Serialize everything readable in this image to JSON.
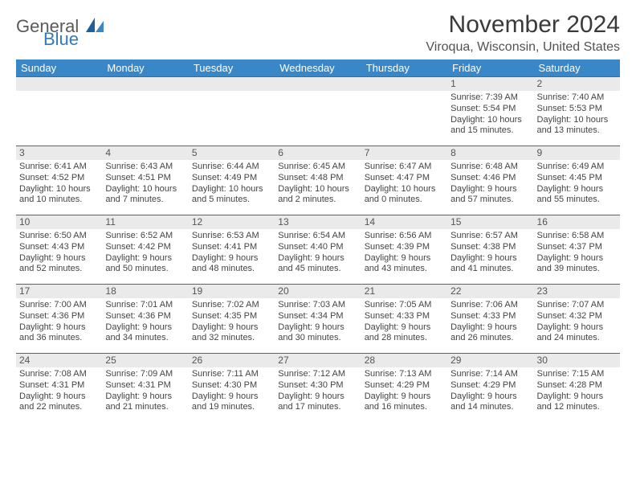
{
  "logo": {
    "general": "General",
    "blue": "Blue"
  },
  "title": "November 2024",
  "location": "Viroqua, Wisconsin, United States",
  "colors": {
    "header_bg": "#3a87c8",
    "header_text": "#ffffff",
    "row_border": "#2f6fa8",
    "daynum_bg": "#eaeaea",
    "body_text": "#444444",
    "logo_gray": "#5a5a5a",
    "logo_blue": "#2f7ac0"
  },
  "weekdays": [
    "Sunday",
    "Monday",
    "Tuesday",
    "Wednesday",
    "Thursday",
    "Friday",
    "Saturday"
  ],
  "weeks": [
    [
      {
        "n": "",
        "sr": "",
        "ss": "",
        "dl1": "",
        "dl2": ""
      },
      {
        "n": "",
        "sr": "",
        "ss": "",
        "dl1": "",
        "dl2": ""
      },
      {
        "n": "",
        "sr": "",
        "ss": "",
        "dl1": "",
        "dl2": ""
      },
      {
        "n": "",
        "sr": "",
        "ss": "",
        "dl1": "",
        "dl2": ""
      },
      {
        "n": "",
        "sr": "",
        "ss": "",
        "dl1": "",
        "dl2": ""
      },
      {
        "n": "1",
        "sr": "Sunrise: 7:39 AM",
        "ss": "Sunset: 5:54 PM",
        "dl1": "Daylight: 10 hours",
        "dl2": "and 15 minutes."
      },
      {
        "n": "2",
        "sr": "Sunrise: 7:40 AM",
        "ss": "Sunset: 5:53 PM",
        "dl1": "Daylight: 10 hours",
        "dl2": "and 13 minutes."
      }
    ],
    [
      {
        "n": "3",
        "sr": "Sunrise: 6:41 AM",
        "ss": "Sunset: 4:52 PM",
        "dl1": "Daylight: 10 hours",
        "dl2": "and 10 minutes."
      },
      {
        "n": "4",
        "sr": "Sunrise: 6:43 AM",
        "ss": "Sunset: 4:51 PM",
        "dl1": "Daylight: 10 hours",
        "dl2": "and 7 minutes."
      },
      {
        "n": "5",
        "sr": "Sunrise: 6:44 AM",
        "ss": "Sunset: 4:49 PM",
        "dl1": "Daylight: 10 hours",
        "dl2": "and 5 minutes."
      },
      {
        "n": "6",
        "sr": "Sunrise: 6:45 AM",
        "ss": "Sunset: 4:48 PM",
        "dl1": "Daylight: 10 hours",
        "dl2": "and 2 minutes."
      },
      {
        "n": "7",
        "sr": "Sunrise: 6:47 AM",
        "ss": "Sunset: 4:47 PM",
        "dl1": "Daylight: 10 hours",
        "dl2": "and 0 minutes."
      },
      {
        "n": "8",
        "sr": "Sunrise: 6:48 AM",
        "ss": "Sunset: 4:46 PM",
        "dl1": "Daylight: 9 hours",
        "dl2": "and 57 minutes."
      },
      {
        "n": "9",
        "sr": "Sunrise: 6:49 AM",
        "ss": "Sunset: 4:45 PM",
        "dl1": "Daylight: 9 hours",
        "dl2": "and 55 minutes."
      }
    ],
    [
      {
        "n": "10",
        "sr": "Sunrise: 6:50 AM",
        "ss": "Sunset: 4:43 PM",
        "dl1": "Daylight: 9 hours",
        "dl2": "and 52 minutes."
      },
      {
        "n": "11",
        "sr": "Sunrise: 6:52 AM",
        "ss": "Sunset: 4:42 PM",
        "dl1": "Daylight: 9 hours",
        "dl2": "and 50 minutes."
      },
      {
        "n": "12",
        "sr": "Sunrise: 6:53 AM",
        "ss": "Sunset: 4:41 PM",
        "dl1": "Daylight: 9 hours",
        "dl2": "and 48 minutes."
      },
      {
        "n": "13",
        "sr": "Sunrise: 6:54 AM",
        "ss": "Sunset: 4:40 PM",
        "dl1": "Daylight: 9 hours",
        "dl2": "and 45 minutes."
      },
      {
        "n": "14",
        "sr": "Sunrise: 6:56 AM",
        "ss": "Sunset: 4:39 PM",
        "dl1": "Daylight: 9 hours",
        "dl2": "and 43 minutes."
      },
      {
        "n": "15",
        "sr": "Sunrise: 6:57 AM",
        "ss": "Sunset: 4:38 PM",
        "dl1": "Daylight: 9 hours",
        "dl2": "and 41 minutes."
      },
      {
        "n": "16",
        "sr": "Sunrise: 6:58 AM",
        "ss": "Sunset: 4:37 PM",
        "dl1": "Daylight: 9 hours",
        "dl2": "and 39 minutes."
      }
    ],
    [
      {
        "n": "17",
        "sr": "Sunrise: 7:00 AM",
        "ss": "Sunset: 4:36 PM",
        "dl1": "Daylight: 9 hours",
        "dl2": "and 36 minutes."
      },
      {
        "n": "18",
        "sr": "Sunrise: 7:01 AM",
        "ss": "Sunset: 4:36 PM",
        "dl1": "Daylight: 9 hours",
        "dl2": "and 34 minutes."
      },
      {
        "n": "19",
        "sr": "Sunrise: 7:02 AM",
        "ss": "Sunset: 4:35 PM",
        "dl1": "Daylight: 9 hours",
        "dl2": "and 32 minutes."
      },
      {
        "n": "20",
        "sr": "Sunrise: 7:03 AM",
        "ss": "Sunset: 4:34 PM",
        "dl1": "Daylight: 9 hours",
        "dl2": "and 30 minutes."
      },
      {
        "n": "21",
        "sr": "Sunrise: 7:05 AM",
        "ss": "Sunset: 4:33 PM",
        "dl1": "Daylight: 9 hours",
        "dl2": "and 28 minutes."
      },
      {
        "n": "22",
        "sr": "Sunrise: 7:06 AM",
        "ss": "Sunset: 4:33 PM",
        "dl1": "Daylight: 9 hours",
        "dl2": "and 26 minutes."
      },
      {
        "n": "23",
        "sr": "Sunrise: 7:07 AM",
        "ss": "Sunset: 4:32 PM",
        "dl1": "Daylight: 9 hours",
        "dl2": "and 24 minutes."
      }
    ],
    [
      {
        "n": "24",
        "sr": "Sunrise: 7:08 AM",
        "ss": "Sunset: 4:31 PM",
        "dl1": "Daylight: 9 hours",
        "dl2": "and 22 minutes."
      },
      {
        "n": "25",
        "sr": "Sunrise: 7:09 AM",
        "ss": "Sunset: 4:31 PM",
        "dl1": "Daylight: 9 hours",
        "dl2": "and 21 minutes."
      },
      {
        "n": "26",
        "sr": "Sunrise: 7:11 AM",
        "ss": "Sunset: 4:30 PM",
        "dl1": "Daylight: 9 hours",
        "dl2": "and 19 minutes."
      },
      {
        "n": "27",
        "sr": "Sunrise: 7:12 AM",
        "ss": "Sunset: 4:30 PM",
        "dl1": "Daylight: 9 hours",
        "dl2": "and 17 minutes."
      },
      {
        "n": "28",
        "sr": "Sunrise: 7:13 AM",
        "ss": "Sunset: 4:29 PM",
        "dl1": "Daylight: 9 hours",
        "dl2": "and 16 minutes."
      },
      {
        "n": "29",
        "sr": "Sunrise: 7:14 AM",
        "ss": "Sunset: 4:29 PM",
        "dl1": "Daylight: 9 hours",
        "dl2": "and 14 minutes."
      },
      {
        "n": "30",
        "sr": "Sunrise: 7:15 AM",
        "ss": "Sunset: 4:28 PM",
        "dl1": "Daylight: 9 hours",
        "dl2": "and 12 minutes."
      }
    ]
  ]
}
